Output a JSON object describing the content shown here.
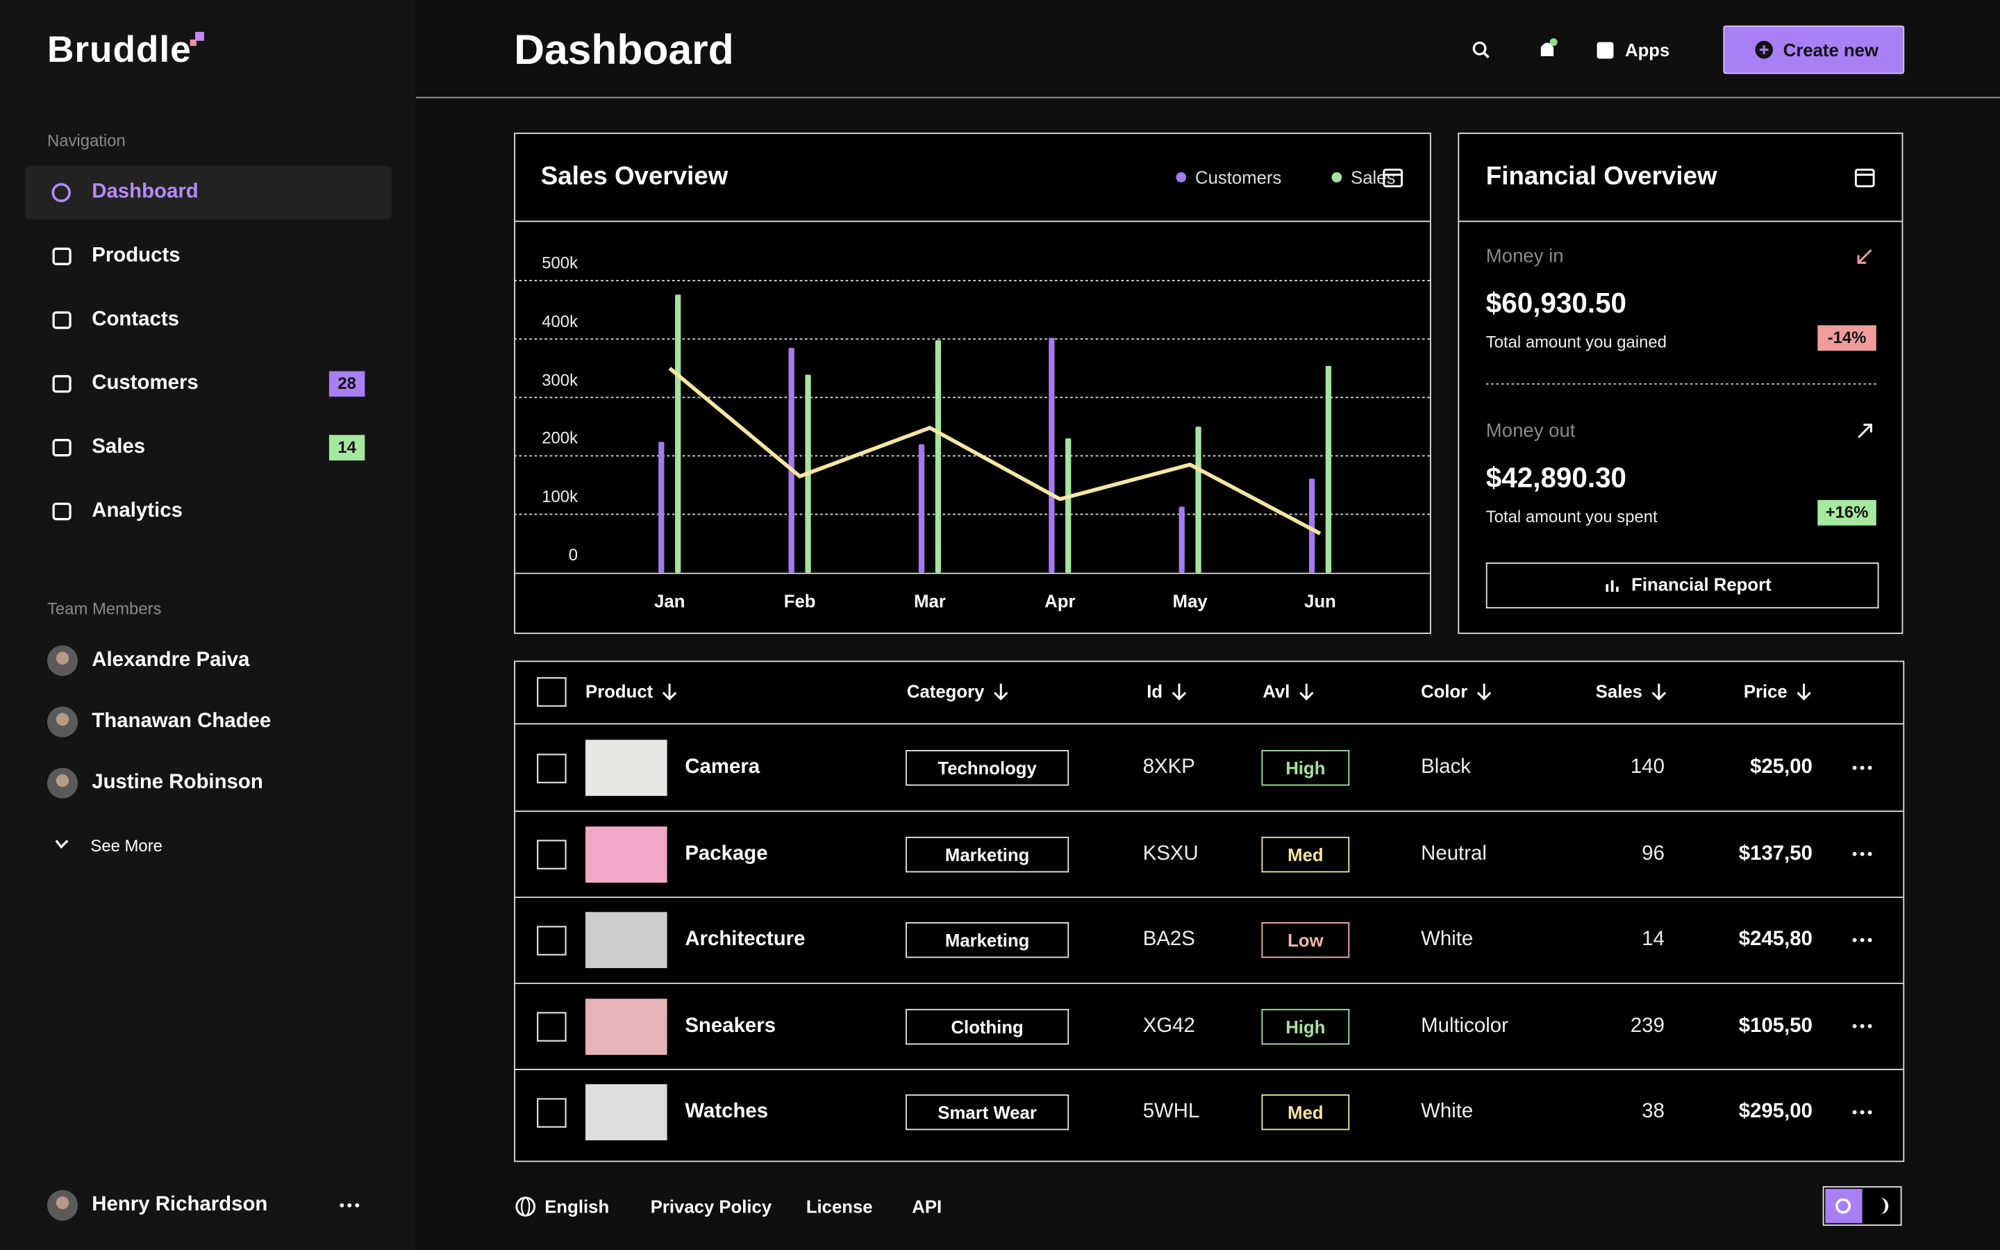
{
  "sidebar": {
    "logo": "Bruddle",
    "nav_heading": "Navigation",
    "nav": [
      {
        "label": "Dashboard"
      },
      {
        "label": "Products"
      },
      {
        "label": "Contacts"
      },
      {
        "label": "Customers",
        "badge": 28,
        "badge_color": "#a97ff5"
      },
      {
        "label": "Sales",
        "badge": 14,
        "badge_color": "#a6e8a0"
      },
      {
        "label": "Analytics"
      }
    ],
    "team_heading": "Team Members",
    "team": [
      "Alexandre Paiva",
      "Thanawan Chadee",
      "Justine Robinson"
    ],
    "see_more": "See More",
    "user": "Henry Richardson"
  },
  "header": {
    "title": "Dashboard",
    "apps": "Apps",
    "create": "Create new"
  },
  "chart_data": {
    "type": "bar",
    "title": "Sales Overview",
    "categories": [
      "Jan",
      "Feb",
      "Mar",
      "Apr",
      "May",
      "Jun"
    ],
    "series": [
      {
        "name": "Customers",
        "color": "#a47af0",
        "values": [
          224000,
          385000,
          220000,
          402000,
          113000,
          161000
        ]
      },
      {
        "name": "Sales",
        "color": "#a6e3a1",
        "values": [
          476000,
          339000,
          398000,
          230000,
          250000,
          354000
        ]
      },
      {
        "type": "line",
        "color": "#f7e6a4",
        "values": [
          350000,
          165000,
          248000,
          126000,
          185000,
          67000
        ]
      }
    ],
    "ylim": [
      0,
      500000
    ],
    "yticks": [
      0,
      {
        "value": 100000,
        "label": "100k"
      },
      {
        "value": 200000,
        "label": "200k"
      },
      {
        "value": 300000,
        "label": "300k"
      },
      {
        "value": 400000,
        "label": "400k"
      },
      {
        "value": 500000,
        "label": "500k"
      }
    ],
    "grid": true,
    "legend": "top-right"
  },
  "financial": {
    "title": "Financial Overview",
    "items": [
      {
        "label": "Money in",
        "amount": "$60,930.50",
        "note": "Total amount you gained",
        "change": "-14%",
        "change_color": "#f19c9c"
      },
      {
        "label": "Money out",
        "amount": "$42,890.30",
        "note": "Total amount you spent",
        "change": "+16%",
        "change_color": "#a6e8a0"
      }
    ],
    "button": "Financial Report"
  },
  "table": {
    "columns": [
      "Product",
      "Category",
      "Id",
      "Avl",
      "Color",
      "Sales",
      "Price"
    ],
    "rows": [
      {
        "product": "Camera",
        "thumb": "#e6e6e2",
        "category": "Technology",
        "id": "8XKP",
        "avl": "High",
        "avl_color": "#a6e3a1",
        "color_name": "Black",
        "sales": 140,
        "price": "$25,00"
      },
      {
        "product": "Package",
        "thumb": "#f0a8c8",
        "category": "Marketing",
        "id": "KSXU",
        "avl": "Med",
        "avl_color": "#f5e4a0",
        "color_name": "Neutral",
        "sales": 96,
        "price": "$137,50"
      },
      {
        "product": "Architecture",
        "thumb": "#cdcdcd",
        "category": "Marketing",
        "id": "BA2S",
        "avl": "Low",
        "avl_color": "#f2b8a8",
        "color_name": "White",
        "sales": 14,
        "price": "$245,80"
      },
      {
        "product": "Sneakers",
        "thumb": "#e6b3b6",
        "category": "Clothing",
        "id": "XG42",
        "avl": "High",
        "avl_color": "#a6e3a1",
        "color_name": "Multicolor",
        "sales": 239,
        "price": "$105,50"
      },
      {
        "product": "Watches",
        "thumb": "#dedede",
        "category": "Smart Wear",
        "id": "5WHL",
        "avl": "Med",
        "avl_color": "#f5e4a0",
        "color_name": "White",
        "sales": 38,
        "price": "$295,00"
      }
    ]
  },
  "footer": {
    "language": "English",
    "links": [
      "Privacy Policy",
      "License",
      "API"
    ]
  }
}
